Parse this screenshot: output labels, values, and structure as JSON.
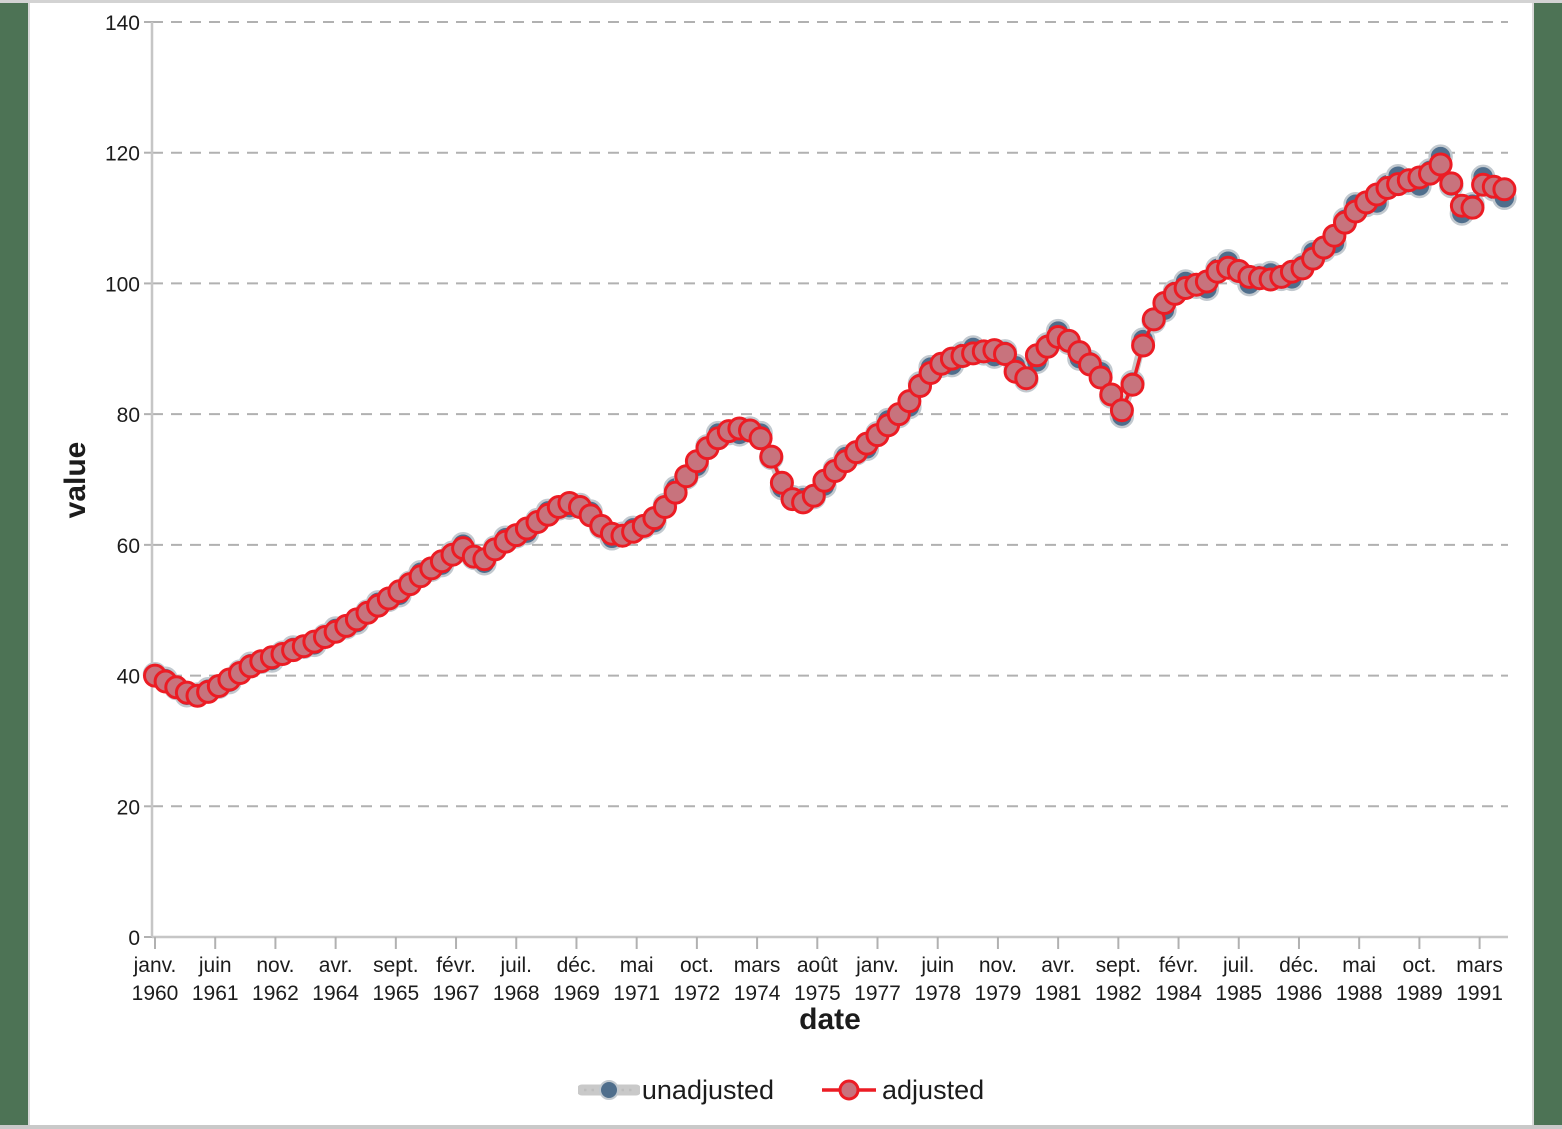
{
  "page": {
    "background": "#ffffff",
    "left_border_color": "#4d7355",
    "right_border_color": "#4d7355",
    "top_border_color": "#d3d3d3",
    "bottom_border_color": "#c9c9c9"
  },
  "chart_data": {
    "type": "line",
    "title": "",
    "xlabel": "date",
    "ylabel": "value",
    "ylim": [
      0,
      140
    ],
    "yticks": [
      0,
      20,
      40,
      60,
      80,
      100,
      120,
      140
    ],
    "grid": "horizontal dashed gray lines at each y tick",
    "legend_position": "bottom-center",
    "x_start": "janv. 1960",
    "x_step_months": 3,
    "x_tick_step_months": 17,
    "x_tick_labels": [
      [
        "janv.",
        "1960"
      ],
      [
        "juin",
        "1961"
      ],
      [
        "nov.",
        "1962"
      ],
      [
        "avr.",
        "1964"
      ],
      [
        "sept.",
        "1965"
      ],
      [
        "févr.",
        "1967"
      ],
      [
        "juil.",
        "1968"
      ],
      [
        "déc.",
        "1969"
      ],
      [
        "mai",
        "1971"
      ],
      [
        "oct.",
        "1972"
      ],
      [
        "mars",
        "1974"
      ],
      [
        "août",
        "1975"
      ],
      [
        "janv.",
        "1977"
      ],
      [
        "juin",
        "1978"
      ],
      [
        "nov.",
        "1979"
      ],
      [
        "avr.",
        "1981"
      ],
      [
        "sept.",
        "1982"
      ],
      [
        "févr.",
        "1984"
      ],
      [
        "juil.",
        "1985"
      ],
      [
        "déc.",
        "1986"
      ],
      [
        "mai",
        "1988"
      ],
      [
        "oct.",
        "1989"
      ],
      [
        "mars",
        "1991"
      ]
    ],
    "series": [
      {
        "name": "unadjusted",
        "marker_fill": "#4f6e8c",
        "marker_stroke": "#c2c9cf",
        "line_color": "#c9c9c9",
        "values": [
          40.2,
          39.5,
          38.1,
          37.0,
          37.1,
          37.9,
          38.3,
          39.0,
          40.6,
          41.8,
          42.1,
          42.3,
          43.5,
          44.3,
          44.4,
          44.7,
          46.1,
          47.2,
          47.4,
          48.1,
          49.8,
          51.2,
          51.6,
          52.3,
          54.2,
          55.8,
          56.2,
          56.9,
          58.8,
          60.1,
          58.0,
          57.2,
          59.6,
          61.1,
          61.3,
          61.8,
          63.8,
          65.2,
          65.6,
          65.7,
          66.1,
          65.1,
          62.7,
          61.0,
          61.7,
          62.6,
          62.7,
          63.4,
          66.1,
          68.7,
          70.3,
          72.0,
          75.1,
          77.1,
          77.1,
          76.9,
          77.8,
          77.1,
          73.3,
          68.7,
          67.3,
          67.2,
          67.3,
          69.0,
          71.6,
          73.5,
          74.0,
          74.7,
          77.1,
          79.1,
          79.7,
          81.1,
          84.7,
          87.2,
          87.4,
          87.5,
          89.3,
          90.2,
          89.3,
          88.8,
          89.6,
          87.4,
          85.2,
          88.0,
          90.7,
          92.7,
          90.9,
          88.5,
          88.0,
          86.5,
          82.7,
          79.7,
          84.9,
          91.4,
          94.2,
          95.9,
          98.8,
          100.3,
          99.5,
          99.2,
          102.3,
          103.4,
          101.6,
          99.9,
          101.2,
          101.6,
          100.7,
          100.7,
          102.8,
          104.8,
          105.1,
          106.1,
          109.8,
          112.1,
          112.0,
          112.3,
          115.1,
          116.4,
          115.4,
          114.9,
          117.3,
          119.4,
          114.9,
          110.7,
          112.1,
          116.3,
          114.4,
          113.1
        ]
      },
      {
        "name": "adjusted",
        "marker_fill": "#c8737d",
        "marker_stroke": "#ec1c24",
        "line_color": "#ec1c24",
        "values": [
          40.0,
          39.1,
          38.2,
          37.4,
          36.9,
          37.5,
          38.4,
          39.4,
          40.4,
          41.4,
          42.2,
          42.8,
          43.3,
          43.9,
          44.5,
          45.2,
          45.9,
          46.7,
          47.6,
          48.6,
          49.6,
          50.7,
          51.8,
          52.9,
          54.0,
          55.2,
          56.4,
          57.5,
          58.5,
          59.5,
          58.2,
          57.8,
          59.3,
          60.5,
          61.5,
          62.5,
          63.5,
          64.6,
          65.8,
          66.4,
          65.8,
          64.5,
          62.9,
          61.7,
          61.4,
          62.0,
          62.9,
          64.1,
          65.8,
          68.0,
          70.5,
          72.8,
          74.8,
          76.3,
          77.4,
          77.8,
          77.5,
          76.3,
          73.5,
          69.5,
          67.0,
          66.5,
          67.5,
          69.8,
          71.3,
          72.8,
          74.2,
          75.5,
          76.8,
          78.3,
          80.0,
          82.0,
          84.3,
          86.3,
          87.7,
          88.5,
          88.9,
          89.3,
          89.6,
          89.8,
          89.2,
          86.5,
          85.5,
          89.0,
          90.3,
          91.8,
          91.2,
          89.5,
          87.6,
          85.6,
          83.0,
          80.6,
          84.5,
          90.5,
          94.5,
          97.0,
          98.4,
          99.3,
          99.8,
          100.3,
          101.8,
          102.4,
          101.9,
          101.0,
          100.8,
          100.6,
          101.0,
          101.8,
          102.3,
          103.8,
          105.5,
          107.3,
          109.3,
          111.0,
          112.4,
          113.6,
          114.6,
          115.2,
          115.8,
          116.2,
          116.8,
          118.2,
          115.3,
          111.9,
          111.6,
          115.1,
          114.8,
          114.4
        ]
      }
    ],
    "axis_color": "#c6c6c6",
    "grid_color": "#b1b1b1",
    "tick_label_color": "#1c1c1c"
  }
}
